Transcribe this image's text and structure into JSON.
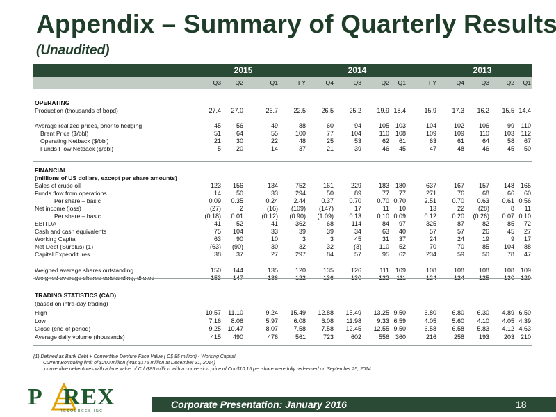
{
  "header": {
    "title": "Appendix – Summary of Quarterly Results",
    "subtitle": "(Unaudited)"
  },
  "years": [
    "2015",
    "2014",
    "2013"
  ],
  "columns": [
    "Q3",
    "Q2",
    "Q1",
    "FY",
    "Q4",
    "Q3",
    "Q2",
    "Q1",
    "FY",
    "Q4",
    "Q3",
    "Q2",
    "Q1"
  ],
  "rows": [
    {
      "label": "OPERATING",
      "style": "section",
      "values": []
    },
    {
      "label": "Production (thousands of bopd)",
      "style": "normal",
      "values": [
        "27.4",
        "27.0",
        "26.7",
        "22.5",
        "26.5",
        "25.2",
        "19.9",
        "18.4",
        "15.9",
        "17.3",
        "16.2",
        "15.5",
        "14.4"
      ]
    },
    {
      "label": "",
      "style": "spacer",
      "values": []
    },
    {
      "label": "Average realized prices, prior to hedging",
      "style": "normal",
      "values": [
        "45",
        "56",
        "49",
        "88",
        "60",
        "94",
        "105",
        "103",
        "104",
        "102",
        "106",
        "99",
        "110"
      ]
    },
    {
      "label": "Brent Price ($/bbl)",
      "style": "indent1",
      "values": [
        "51",
        "64",
        "55",
        "100",
        "77",
        "104",
        "110",
        "108",
        "109",
        "109",
        "110",
        "103",
        "112"
      ]
    },
    {
      "label": "Operating Netback ($/bbl)",
      "style": "indent1",
      "values": [
        "21",
        "30",
        "22",
        "48",
        "25",
        "53",
        "62",
        "61",
        "63",
        "61",
        "64",
        "58",
        "67"
      ]
    },
    {
      "label": "Funds Flow Netback ($/bbl)",
      "style": "indent1",
      "values": [
        "5",
        "20",
        "14",
        "37",
        "21",
        "39",
        "46",
        "45",
        "47",
        "48",
        "46",
        "45",
        "50"
      ]
    },
    {
      "label": "",
      "style": "spacer",
      "values": []
    },
    {
      "label": "FINANCIAL",
      "style": "section",
      "values": []
    },
    {
      "label": "(millions of US dollars, except per share amounts)",
      "style": "section",
      "values": []
    },
    {
      "label": "Sales of crude oil",
      "style": "normal",
      "values": [
        "123",
        "156",
        "134",
        "752",
        "161",
        "229",
        "183",
        "180",
        "637",
        "167",
        "157",
        "148",
        "165"
      ]
    },
    {
      "label": "Funds flow from operations",
      "style": "normal",
      "values": [
        "14",
        "50",
        "33",
        "294",
        "50",
        "89",
        "77",
        "77",
        "271",
        "76",
        "68",
        "66",
        "60"
      ]
    },
    {
      "label": "Per share – basic",
      "style": "indent2",
      "values": [
        "0.09",
        "0.35",
        "0.24",
        "2.44",
        "0.37",
        "0.70",
        "0.70",
        "0.70",
        "2.51",
        "0.70",
        "0.63",
        "0.61",
        "0.56"
      ]
    },
    {
      "label": "Net income (loss)",
      "style": "normal",
      "values": [
        "(27)",
        "2",
        "(16)",
        "(109)",
        "(147)",
        "17",
        "11",
        "10",
        "13",
        "22",
        "(28)",
        "8",
        "11"
      ]
    },
    {
      "label": "Per share – basic",
      "style": "indent2",
      "values": [
        "(0.18)",
        "0.01",
        "(0.12)",
        "(0.90)",
        "(1.09)",
        "0.13",
        "0.10",
        "0.09",
        "0.12",
        "0.20",
        "(0.26)",
        "0.07",
        "0.10"
      ]
    },
    {
      "label": "EBITDA",
      "style": "normal",
      "values": [
        "41",
        "52",
        "41",
        "362",
        "68",
        "114",
        "84",
        "97",
        "325",
        "87",
        "82",
        "85",
        "72"
      ]
    },
    {
      "label": "Cash and cash equivalents",
      "style": "normal",
      "values": [
        "75",
        "104",
        "33",
        "39",
        "39",
        "34",
        "63",
        "40",
        "57",
        "57",
        "26",
        "45",
        "27"
      ]
    },
    {
      "label": "Working Capital",
      "style": "normal",
      "values": [
        "63",
        "90",
        "10",
        "3",
        "3",
        "45",
        "31",
        "37",
        "24",
        "24",
        "19",
        "9",
        "17"
      ]
    },
    {
      "label": "Net Debt (Surplus) (1)",
      "style": "normal",
      "values": [
        "(63)",
        "(90)",
        "30",
        "32",
        "32",
        "(3)",
        "110",
        "52",
        "70",
        "70",
        "85",
        "104",
        "88"
      ]
    },
    {
      "label": "Capital Expenditures",
      "style": "normal",
      "values": [
        "38",
        "37",
        "27",
        "297",
        "84",
        "57",
        "95",
        "62",
        "234",
        "59",
        "50",
        "78",
        "47"
      ]
    },
    {
      "label": "",
      "style": "spacer",
      "values": []
    },
    {
      "label": "Weighed average shares outstanding",
      "style": "normal",
      "values": [
        "150",
        "144",
        "135",
        "120",
        "135",
        "126",
        "111",
        "109",
        "108",
        "108",
        "108",
        "108",
        "109"
      ]
    },
    {
      "label": "Weighed average shares outstanding, diluted",
      "style": "normal",
      "values": [
        "153",
        "147",
        "136",
        "122",
        "136",
        "130",
        "122",
        "111",
        "124",
        "124",
        "125",
        "130",
        "129"
      ]
    },
    {
      "label": "",
      "style": "spacer",
      "values": []
    },
    {
      "label": "TRADING STATISTICS (CAD)",
      "style": "section",
      "values": []
    },
    {
      "label": "(based on intra-day trading)",
      "style": "normal",
      "values": []
    },
    {
      "label": "High",
      "style": "normal",
      "values": [
        "10.57",
        "11.10",
        "9.24",
        "15.49",
        "12.88",
        "15.49",
        "13.25",
        "9.50",
        "6.80",
        "6.80",
        "6.30",
        "4.89",
        "6.50"
      ]
    },
    {
      "label": "Low",
      "style": "normal",
      "values": [
        "7.16",
        "8.06",
        "5.97",
        "6.08",
        "6.08",
        "11.98",
        "9.33",
        "6.59",
        "4.05",
        "5.60",
        "4.10",
        "4.05",
        "4.39"
      ]
    },
    {
      "label": "Close (end of period)",
      "style": "normal",
      "values": [
        "9.25",
        "10.47",
        "8.07",
        "7.58",
        "7.58",
        "12.45",
        "12.55",
        "9.50",
        "6.58",
        "6.58",
        "5.83",
        "4.12",
        "4.63"
      ]
    },
    {
      "label": "Average daily volume (thousands)",
      "style": "normal",
      "values": [
        "415",
        "490",
        "476",
        "561",
        "723",
        "602",
        "556",
        "360",
        "216",
        "258",
        "193",
        "203",
        "210"
      ]
    }
  ],
  "footnotes": [
    "(1)  Defined as Bank Debt + Convertible Denture   Face Value ( C$ 85 million) -  Working Capital",
    "Current Borrowing limit of $200 million (was $175 million at December 31, 2014)",
    "convertible debentures with a face value of Cdn$85 million with a conversion price of Cdn$10.15 per share were fully redeemed on September 25, 2014."
  ],
  "logo": {
    "name": "PAREX",
    "sub": "RESOURCES INC"
  },
  "footer": {
    "text": "Corporate Presentation: January 2016",
    "page": "18"
  },
  "colors": {
    "brand_green": "#2b4a35",
    "header_light": "#c2ccc4",
    "title_green": "#1f3d29"
  }
}
